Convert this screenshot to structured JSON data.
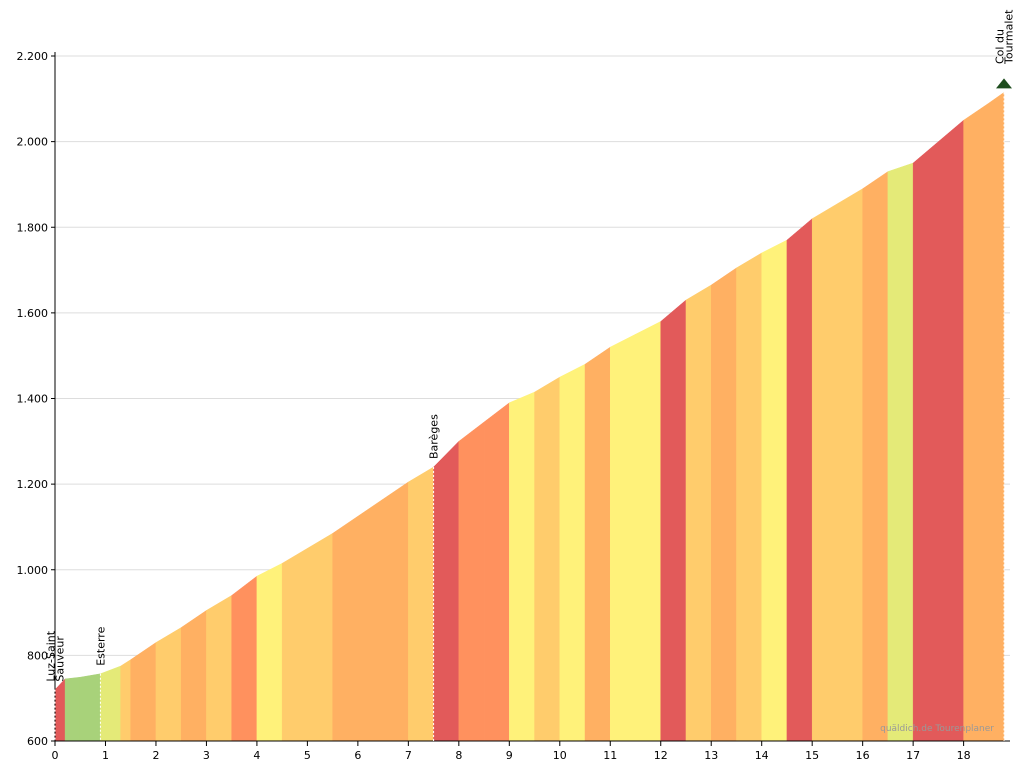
{
  "chart_data": {
    "type": "area",
    "x": [
      0,
      0.2,
      0.5,
      0.9,
      1.3,
      1.5,
      2,
      2.5,
      3,
      3.5,
      4,
      4.5,
      5,
      5.5,
      6,
      6.5,
      7,
      7.5,
      8,
      8.5,
      9,
      9.5,
      10,
      10.5,
      11,
      11.5,
      12,
      12.5,
      13,
      13.5,
      14,
      14.5,
      15,
      15.5,
      16,
      16.5,
      17,
      17.5,
      18,
      18.5,
      18.8
    ],
    "values": [
      720,
      745,
      749,
      757,
      775,
      790,
      830,
      865,
      905,
      940,
      985,
      1015,
      1050,
      1085,
      1125,
      1165,
      1205,
      1240,
      1300,
      1345,
      1390,
      1415,
      1450,
      1480,
      1520,
      1550,
      1580,
      1630,
      1665,
      1705,
      1740,
      1770,
      1820,
      1855,
      1890,
      1930,
      1950,
      2000,
      2050,
      2090,
      2115
    ],
    "xlim": [
      0,
      18.8
    ],
    "xticks": [
      0,
      1,
      2,
      3,
      4,
      5,
      6,
      7,
      8,
      9,
      10,
      11,
      12,
      13,
      14,
      15,
      16,
      17,
      18
    ],
    "ylim": [
      600,
      2200
    ],
    "yticks": [
      600,
      800,
      {
        "value": 1000,
        "label": "1.000"
      },
      {
        "value": 1200,
        "label": "1.200"
      },
      {
        "value": 1400,
        "label": "1.400"
      },
      {
        "value": 1600,
        "label": "1.600"
      },
      {
        "value": 1800,
        "label": "1.800"
      },
      {
        "value": 2000,
        "label": "2.000"
      },
      {
        "value": 2200,
        "label": "2.200"
      }
    ],
    "grid": true,
    "waypoints": [
      {
        "x": 0,
        "lines": [
          "Luz-Saint",
          "Sauveur"
        ]
      },
      {
        "x": 0.9,
        "lines": [
          "Esterre"
        ]
      },
      {
        "x": 7.5,
        "lines": [
          "Barèges"
        ]
      },
      {
        "x": 18.8,
        "lines": [
          "Col du",
          "Tourmalet"
        ]
      }
    ],
    "watermark": "quäldich.de Tourenplaner"
  }
}
